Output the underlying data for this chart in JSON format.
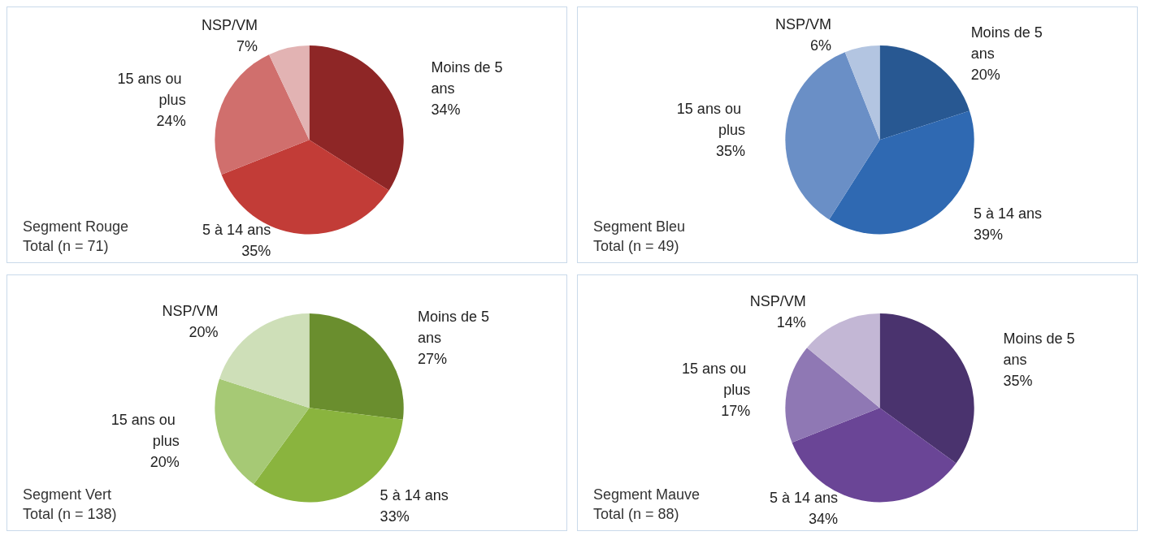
{
  "chart_data": [
    {
      "type": "pie",
      "title": "Segment Rouge",
      "subtitle": "Total (n = 71)",
      "categories": [
        "Moins de 5 ans",
        "5 à 14 ans",
        "15 ans ou plus",
        "NSP/VM"
      ],
      "values": [
        34,
        35,
        24,
        7
      ],
      "value_labels": [
        "34%",
        "35%",
        "24%",
        "7%"
      ],
      "colors": [
        "#8e2626",
        "#c23c37",
        "#d06f6d",
        "#e2b3b3"
      ]
    },
    {
      "type": "pie",
      "title": "Segment Bleu",
      "subtitle": "Total (n = 49)",
      "categories": [
        "Moins de 5 ans",
        "5 à 14 ans",
        "15 ans ou plus",
        "NSP/VM"
      ],
      "values": [
        20,
        39,
        35,
        6
      ],
      "value_labels": [
        "20%",
        "39%",
        "35%",
        "6%"
      ],
      "colors": [
        "#285892",
        "#2f69b2",
        "#6a8fc6",
        "#b3c5e1"
      ]
    },
    {
      "type": "pie",
      "title": "Segment Vert",
      "subtitle": "Total (n = 138)",
      "categories": [
        "Moins de 5 ans",
        "5 à 14 ans",
        "15 ans ou plus",
        "NSP/VM"
      ],
      "values": [
        27,
        33,
        20,
        20
      ],
      "value_labels": [
        "27%",
        "33%",
        "20%",
        "20%"
      ],
      "colors": [
        "#6a8e2e",
        "#8ab43e",
        "#a6c975",
        "#cedfb8"
      ]
    },
    {
      "type": "pie",
      "title": "Segment Mauve",
      "subtitle": "Total (n = 88)",
      "categories": [
        "Moins de 5 ans",
        "5 à 14 ans",
        "15 ans ou plus",
        "NSP/VM"
      ],
      "values": [
        35,
        34,
        17,
        14
      ],
      "value_labels": [
        "35%",
        "34%",
        "17%",
        "14%"
      ],
      "colors": [
        "#4a336e",
        "#6a4596",
        "#8f78b4",
        "#c3b7d5"
      ]
    }
  ]
}
